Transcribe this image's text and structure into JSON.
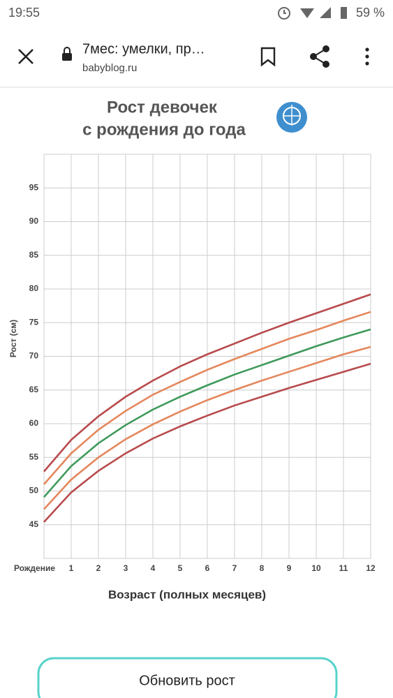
{
  "status_bar": {
    "time": "19:55",
    "battery": "59 %"
  },
  "browser": {
    "title": "7мес: умелки, пр…",
    "url": "babyblog.ru"
  },
  "chart_data": {
    "type": "line",
    "title": [
      "Рост девочек",
      "с рождения до года"
    ],
    "x_label": "Возраст (полных месяцев)",
    "y_label": "Рост (см)",
    "x": [
      0,
      1,
      2,
      3,
      4,
      5,
      6,
      7,
      8,
      9,
      10,
      11,
      12
    ],
    "xlim": [
      0,
      12
    ],
    "xticks": [
      {
        "value": 0,
        "label": "Рождение"
      },
      1,
      2,
      3,
      4,
      5,
      6,
      7,
      8,
      9,
      10,
      11,
      12
    ],
    "ylim": [
      40,
      100
    ],
    "yticks": [
      45,
      50,
      55,
      60,
      65,
      70,
      75,
      80,
      85,
      90,
      95
    ],
    "grid": true,
    "series": [
      {
        "color": "#b84a4c",
        "values": [
          52.9,
          57.6,
          61.1,
          64.0,
          66.4,
          68.5,
          70.3,
          71.9,
          73.5,
          75.0,
          76.4,
          77.8,
          79.2
        ]
      },
      {
        "color": "#e4875c",
        "values": [
          51.0,
          55.6,
          59.1,
          61.9,
          64.3,
          66.2,
          68.0,
          69.6,
          71.1,
          72.6,
          73.9,
          75.3,
          76.6
        ]
      },
      {
        "color": "#3e9a5a",
        "values": [
          49.1,
          53.7,
          57.1,
          59.8,
          62.1,
          64.0,
          65.7,
          67.3,
          68.7,
          70.1,
          71.5,
          72.8,
          74.0
        ]
      },
      {
        "color": "#e4875c",
        "values": [
          47.3,
          51.7,
          55.0,
          57.7,
          59.9,
          61.8,
          63.5,
          65.0,
          66.4,
          67.7,
          69.0,
          70.3,
          71.4
        ]
      },
      {
        "color": "#b84a4c",
        "values": [
          45.4,
          49.8,
          53.0,
          55.6,
          57.8,
          59.6,
          61.2,
          62.7,
          64.0,
          65.3,
          66.5,
          67.7,
          68.9
        ]
      }
    ]
  },
  "button": {
    "label": "Обновить рост"
  }
}
